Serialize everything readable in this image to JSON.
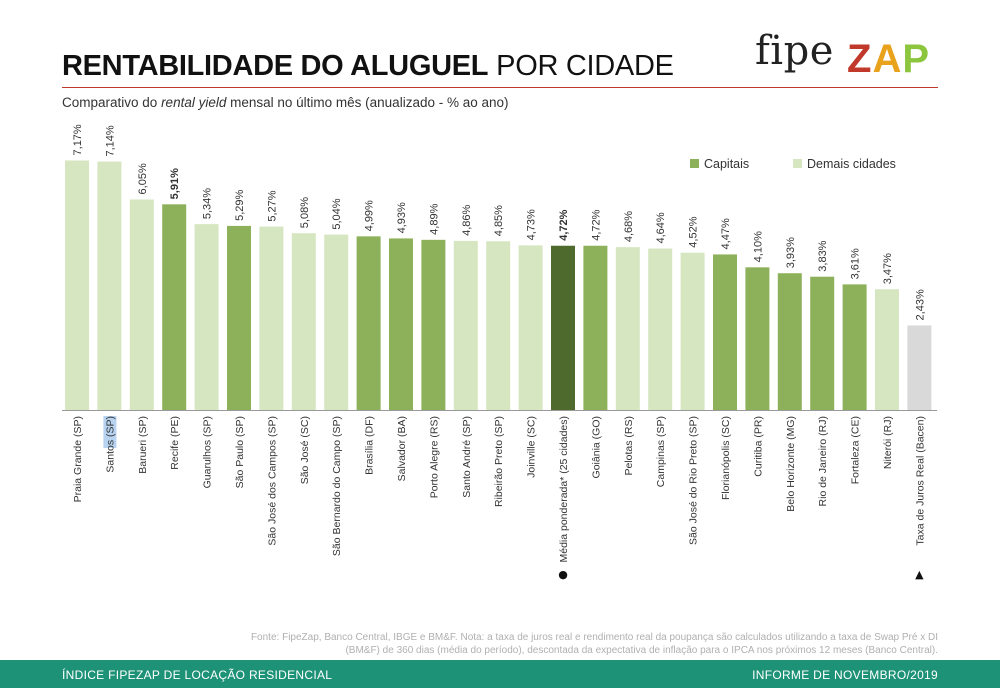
{
  "header": {
    "title_bold": "RENTABILIDADE DO ALUGUEL",
    "title_light": "POR CIDADE",
    "subtitle_pre": "Comparativo do ",
    "subtitle_italic": "rental yield",
    "subtitle_post": " mensal no último mês (anualizado - % ao ano)"
  },
  "logo": {
    "fipe": "fipe",
    "zap": "ZAP",
    "colors": {
      "z": "#c0392b",
      "a": "#e8a21c",
      "p": "#8cc63f"
    }
  },
  "legend": [
    {
      "label": "Capitais",
      "color": "#8db05a"
    },
    {
      "label": "Demais cidades",
      "color": "#d6e6c0"
    }
  ],
  "colors": {
    "capital": "#8db05a",
    "other": "#d6e6c0",
    "average": "#4e6a2c",
    "reference": "#d9d9d9",
    "footer_bg": "#1d9277",
    "title_rule": "#c0392b"
  },
  "chart_data": {
    "type": "bar",
    "title": "RENTABILIDADE DO ALUGUEL POR CIDADE",
    "subtitle": "Comparativo do rental yield mensal no último mês (anualizado - % ao ano)",
    "unit": "%",
    "ylim": [
      0,
      8
    ],
    "grid": false,
    "legend_position": "top-right",
    "bars": [
      {
        "category": "Praia Grande (SP)",
        "value": 7.17,
        "label": "7,17%",
        "group": "other"
      },
      {
        "category": "Santos (SP)",
        "value": 7.14,
        "label": "7,14%",
        "group": "other",
        "highlight_label": true
      },
      {
        "category": "Barueri (SP)",
        "value": 6.05,
        "label": "6,05%",
        "group": "other"
      },
      {
        "category": "Recife (PE)",
        "value": 5.91,
        "label": "5,91%",
        "group": "capital",
        "bold_label": true
      },
      {
        "category": "Guarulhos (SP)",
        "value": 5.34,
        "label": "5,34%",
        "group": "other"
      },
      {
        "category": "São Paulo (SP)",
        "value": 5.29,
        "label": "5,29%",
        "group": "capital"
      },
      {
        "category": "São José dos Campos (SP)",
        "value": 5.27,
        "label": "5,27%",
        "group": "other"
      },
      {
        "category": "São José (SC)",
        "value": 5.08,
        "label": "5,08%",
        "group": "other"
      },
      {
        "category": "São Bernardo do Campo (SP)",
        "value": 5.04,
        "label": "5,04%",
        "group": "other"
      },
      {
        "category": "Brasília (DF)",
        "value": 4.99,
        "label": "4,99%",
        "group": "capital"
      },
      {
        "category": "Salvador (BA)",
        "value": 4.93,
        "label": "4,93%",
        "group": "capital"
      },
      {
        "category": "Porto Alegre (RS)",
        "value": 4.89,
        "label": "4,89%",
        "group": "capital"
      },
      {
        "category": "Santo André (SP)",
        "value": 4.86,
        "label": "4,86%",
        "group": "other"
      },
      {
        "category": "Ribeirão Preto (SP)",
        "value": 4.85,
        "label": "4,85%",
        "group": "other"
      },
      {
        "category": "Joinville (SC)",
        "value": 4.73,
        "label": "4,73%",
        "group": "other"
      },
      {
        "category": "Média ponderada* (25 cidades)",
        "value": 4.72,
        "label": "4,72%",
        "group": "average",
        "bold_label": true,
        "marker": "●"
      },
      {
        "category": "Goiânia (GO)",
        "value": 4.72,
        "label": "4,72%",
        "group": "capital"
      },
      {
        "category": "Pelotas (RS)",
        "value": 4.68,
        "label": "4,68%",
        "group": "other"
      },
      {
        "category": "Campinas (SP)",
        "value": 4.64,
        "label": "4,64%",
        "group": "other"
      },
      {
        "category": "São José do Rio Preto (SP)",
        "value": 4.52,
        "label": "4,52%",
        "group": "other"
      },
      {
        "category": "Florianópolis (SC)",
        "value": 4.47,
        "label": "4,47%",
        "group": "capital"
      },
      {
        "category": "Curitiba (PR)",
        "value": 4.1,
        "label": "4,10%",
        "group": "capital"
      },
      {
        "category": "Belo Horizonte (MG)",
        "value": 3.93,
        "label": "3,93%",
        "group": "capital"
      },
      {
        "category": "Rio de Janeiro (RJ)",
        "value": 3.83,
        "label": "3,83%",
        "group": "capital"
      },
      {
        "category": "Fortaleza (CE)",
        "value": 3.61,
        "label": "3,61%",
        "group": "capital"
      },
      {
        "category": "Niterói (RJ)",
        "value": 3.47,
        "label": "3,47%",
        "group": "other"
      },
      {
        "category": "Taxa de Juros Real (Bacen)",
        "value": 2.43,
        "label": "2,43%",
        "group": "reference",
        "marker": "▲"
      }
    ]
  },
  "source_note": {
    "line1": "Fonte: FipeZap, Banco Central, IBGE e BM&F. Nota: a taxa de juros real e rendimento real da poupança são calculados utilizando a taxa de Swap Pré x DI",
    "line2": "(BM&F) de 360 dias (média do período), descontada da expectativa de inflação para o IPCA nos próximos 12 meses (Banco Central)."
  },
  "footer": {
    "left": "ÍNDICE FIPEZAP DE LOCAÇÃO RESIDENCIAL",
    "right": "INFORME DE NOVEMBRO/2019"
  }
}
